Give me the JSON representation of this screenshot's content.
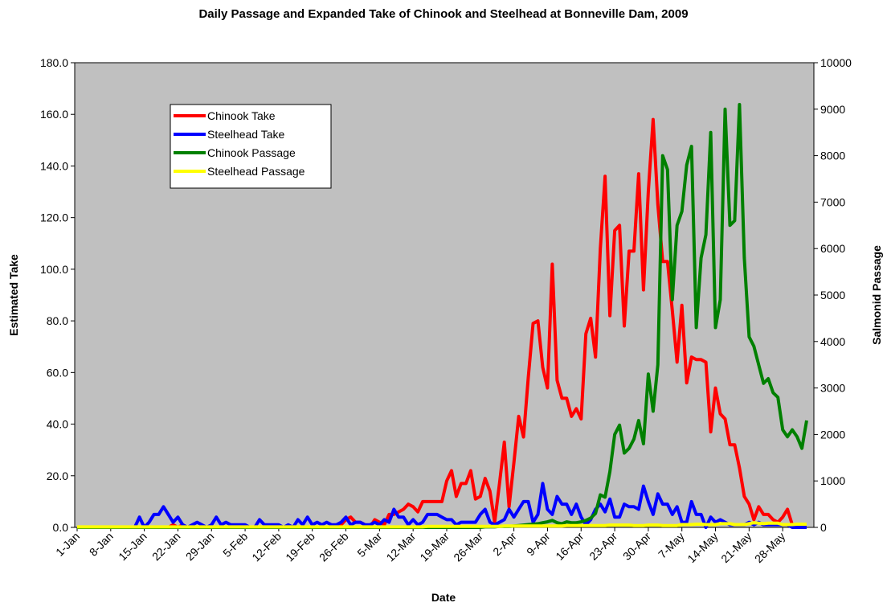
{
  "chart_data": {
    "type": "line",
    "title": "Daily Passage and Expanded Take of Chinook and Steelhead at Bonneville Dam, 2009",
    "x_label": "Date",
    "y_label": "Estimated Take",
    "y2_label": "Salmonid Passage",
    "categories": [
      "1-Jan",
      null,
      null,
      null,
      null,
      null,
      null,
      "8-Jan",
      null,
      null,
      null,
      null,
      null,
      null,
      "15-Jan",
      null,
      null,
      null,
      null,
      null,
      null,
      "22-Jan",
      null,
      null,
      null,
      null,
      null,
      null,
      "29-Jan",
      null,
      null,
      null,
      null,
      null,
      null,
      "5-Feb",
      null,
      null,
      null,
      null,
      null,
      null,
      "12-Feb",
      null,
      null,
      null,
      null,
      null,
      null,
      "19-Feb",
      null,
      null,
      null,
      null,
      null,
      null,
      "26-Feb",
      null,
      null,
      null,
      null,
      null,
      null,
      "5-Mar",
      null,
      null,
      null,
      null,
      null,
      null,
      "12-Mar",
      null,
      null,
      null,
      null,
      null,
      null,
      "19-Mar",
      null,
      null,
      null,
      null,
      null,
      null,
      "26-Mar",
      null,
      null,
      null,
      null,
      null,
      null,
      "2-Apr",
      null,
      null,
      null,
      null,
      null,
      null,
      "9-Apr",
      null,
      null,
      null,
      null,
      null,
      null,
      "16-Apr",
      null,
      null,
      null,
      null,
      null,
      null,
      "23-Apr",
      null,
      null,
      null,
      null,
      null,
      null,
      "30-Apr",
      null,
      null,
      null,
      null,
      null,
      null,
      "7-May",
      null,
      null,
      null,
      null,
      null,
      null,
      "14-May",
      null,
      null,
      null,
      null,
      null,
      null,
      "21-May",
      null,
      null,
      null,
      null,
      null,
      null,
      "28-May",
      null,
      null,
      null,
      null,
      null,
      null
    ],
    "series": [
      {
        "name": "Chinook Take",
        "color": "#ff0000",
        "values": [
          0,
          0,
          0,
          0,
          0,
          0,
          0,
          0,
          0,
          0,
          0,
          0,
          0,
          0,
          0,
          0,
          0,
          0,
          0,
          0,
          1,
          0,
          1,
          0,
          0,
          0,
          0,
          0,
          0,
          0,
          0,
          0,
          0,
          0,
          0,
          0,
          0,
          0,
          0,
          0,
          0,
          0,
          0,
          0,
          0,
          0,
          0,
          0,
          0,
          0,
          0,
          0,
          0,
          0,
          0,
          1,
          3,
          4,
          2,
          2,
          1,
          0,
          3,
          2,
          1,
          5,
          5,
          6,
          7,
          9,
          8,
          6,
          10,
          10,
          10,
          10,
          10,
          18,
          22,
          12,
          17,
          17,
          22,
          11,
          12,
          19,
          14,
          2,
          17,
          33,
          8,
          25,
          43,
          35,
          58,
          79,
          80,
          62,
          54,
          102,
          57,
          50,
          50,
          43,
          46,
          42,
          75,
          81,
          66,
          108,
          136,
          82,
          115,
          117,
          78,
          107,
          107,
          137,
          92,
          130,
          158,
          125,
          103,
          103,
          84,
          64,
          86,
          56,
          66,
          65,
          65,
          64,
          37,
          54,
          44,
          42,
          32,
          32,
          23,
          12,
          9,
          3,
          8,
          5,
          5,
          3,
          2,
          4,
          7,
          1,
          null,
          null,
          null,
          null
        ]
      },
      {
        "name": "Steelhead Take",
        "color": "#0000ff",
        "values": [
          0,
          0,
          0,
          0,
          0,
          0,
          0,
          0,
          0,
          0,
          0,
          0,
          0,
          4,
          0,
          2,
          5,
          5,
          8,
          5,
          2,
          4,
          1,
          0,
          1,
          2,
          1,
          0,
          1,
          4,
          1,
          2,
          1,
          1,
          1,
          1,
          0,
          0,
          3,
          1,
          1,
          1,
          1,
          0,
          1,
          0,
          3,
          1,
          4,
          1,
          2,
          1,
          2,
          1,
          1,
          2,
          4,
          1,
          2,
          2,
          1,
          1,
          2,
          1,
          3,
          2,
          7,
          4,
          4,
          1,
          3,
          1,
          2,
          5,
          5,
          5,
          4,
          3,
          3,
          1,
          2,
          2,
          2,
          2,
          5,
          7,
          2,
          1,
          2,
          3,
          7,
          4,
          7,
          10,
          10,
          2,
          5,
          17,
          7,
          5,
          12,
          9,
          9,
          5,
          9,
          4,
          1,
          3,
          7,
          9,
          6,
          11,
          4,
          4,
          9,
          8,
          8,
          7,
          16,
          10,
          5,
          13,
          9,
          9,
          5,
          8,
          2,
          2,
          10,
          5,
          5,
          0,
          4,
          2,
          3,
          2,
          1,
          1,
          1,
          1,
          2,
          1,
          2,
          1,
          1,
          1,
          1,
          1,
          1,
          0,
          0,
          0,
          0,
          null
        ]
      },
      {
        "name": "Chinook Passage",
        "color": "#008000",
        "axis": "y2",
        "values": [
          0,
          0,
          0,
          0,
          0,
          0,
          0,
          0,
          0,
          0,
          0,
          0,
          0,
          0,
          0,
          0,
          0,
          0,
          0,
          0,
          0,
          0,
          0,
          0,
          0,
          0,
          0,
          0,
          0,
          0,
          0,
          0,
          0,
          0,
          0,
          0,
          0,
          0,
          0,
          0,
          0,
          0,
          0,
          0,
          0,
          0,
          0,
          0,
          0,
          0,
          0,
          0,
          0,
          0,
          0,
          0,
          0,
          0,
          0,
          0,
          0,
          0,
          0,
          0,
          0,
          0,
          0,
          0,
          0,
          0,
          0,
          0,
          0,
          0,
          0,
          0,
          0,
          0,
          0,
          0,
          0,
          0,
          0,
          0,
          0,
          10,
          10,
          10,
          20,
          20,
          20,
          30,
          40,
          50,
          60,
          70,
          80,
          100,
          120,
          150,
          100,
          80,
          120,
          100,
          100,
          120,
          150,
          200,
          300,
          700,
          650,
          1200,
          2000,
          2200,
          1600,
          1700,
          1900,
          2300,
          1800,
          3300,
          2500,
          3500,
          8000,
          7700,
          4900,
          6500,
          6800,
          7800,
          8200,
          4300,
          5800,
          6300,
          8500,
          4300,
          4900,
          9000,
          6500,
          6600,
          9100,
          5800,
          4100,
          3900,
          3500,
          3100,
          3200,
          2900,
          2800,
          2100,
          1950,
          2100,
          1950,
          1700,
          2300,
          null
        ]
      },
      {
        "name": "Steelhead Passage",
        "color": "#ffff00",
        "axis": "y2",
        "values": [
          10,
          10,
          10,
          10,
          10,
          10,
          10,
          10,
          10,
          10,
          10,
          10,
          10,
          10,
          10,
          10,
          10,
          10,
          10,
          10,
          10,
          10,
          10,
          10,
          10,
          10,
          10,
          10,
          10,
          10,
          10,
          10,
          10,
          10,
          10,
          10,
          10,
          10,
          10,
          10,
          10,
          10,
          10,
          10,
          10,
          10,
          10,
          10,
          10,
          10,
          10,
          10,
          10,
          10,
          10,
          10,
          10,
          10,
          10,
          10,
          10,
          10,
          10,
          10,
          10,
          10,
          10,
          10,
          10,
          10,
          10,
          10,
          10,
          20,
          20,
          20,
          20,
          20,
          20,
          20,
          20,
          20,
          20,
          20,
          20,
          20,
          20,
          20,
          20,
          30,
          30,
          30,
          30,
          30,
          30,
          30,
          30,
          30,
          30,
          30,
          30,
          30,
          40,
          40,
          40,
          40,
          40,
          40,
          40,
          40,
          40,
          50,
          50,
          50,
          50,
          50,
          40,
          40,
          40,
          50,
          50,
          50,
          40,
          40,
          40,
          40,
          60,
          60,
          60,
          70,
          70,
          60,
          60,
          60,
          80,
          80,
          80,
          60,
          60,
          60,
          80,
          100,
          90,
          80,
          90,
          90,
          90,
          60,
          60,
          60,
          70,
          70,
          70,
          null
        ]
      }
    ],
    "ylim": [
      0,
      180
    ],
    "yticks": [
      {
        "value": 0,
        "label": "0.0"
      },
      {
        "value": 20,
        "label": "20.0"
      },
      {
        "value": 40,
        "label": "40.0"
      },
      {
        "value": 60,
        "label": "60.0"
      },
      {
        "value": 80,
        "label": "80.0"
      },
      {
        "value": 100,
        "label": "100.0"
      },
      {
        "value": 120,
        "label": "120.0"
      },
      {
        "value": 140,
        "label": "140.0"
      },
      {
        "value": 160,
        "label": "160.0"
      },
      {
        "value": 180,
        "label": "180.0"
      }
    ],
    "y2lim": [
      0,
      10000
    ],
    "y2ticks": [
      0,
      1000,
      2000,
      3000,
      4000,
      5000,
      6000,
      7000,
      8000,
      9000,
      10000
    ],
    "background": "#c0c0c0",
    "legend": "top-left"
  }
}
